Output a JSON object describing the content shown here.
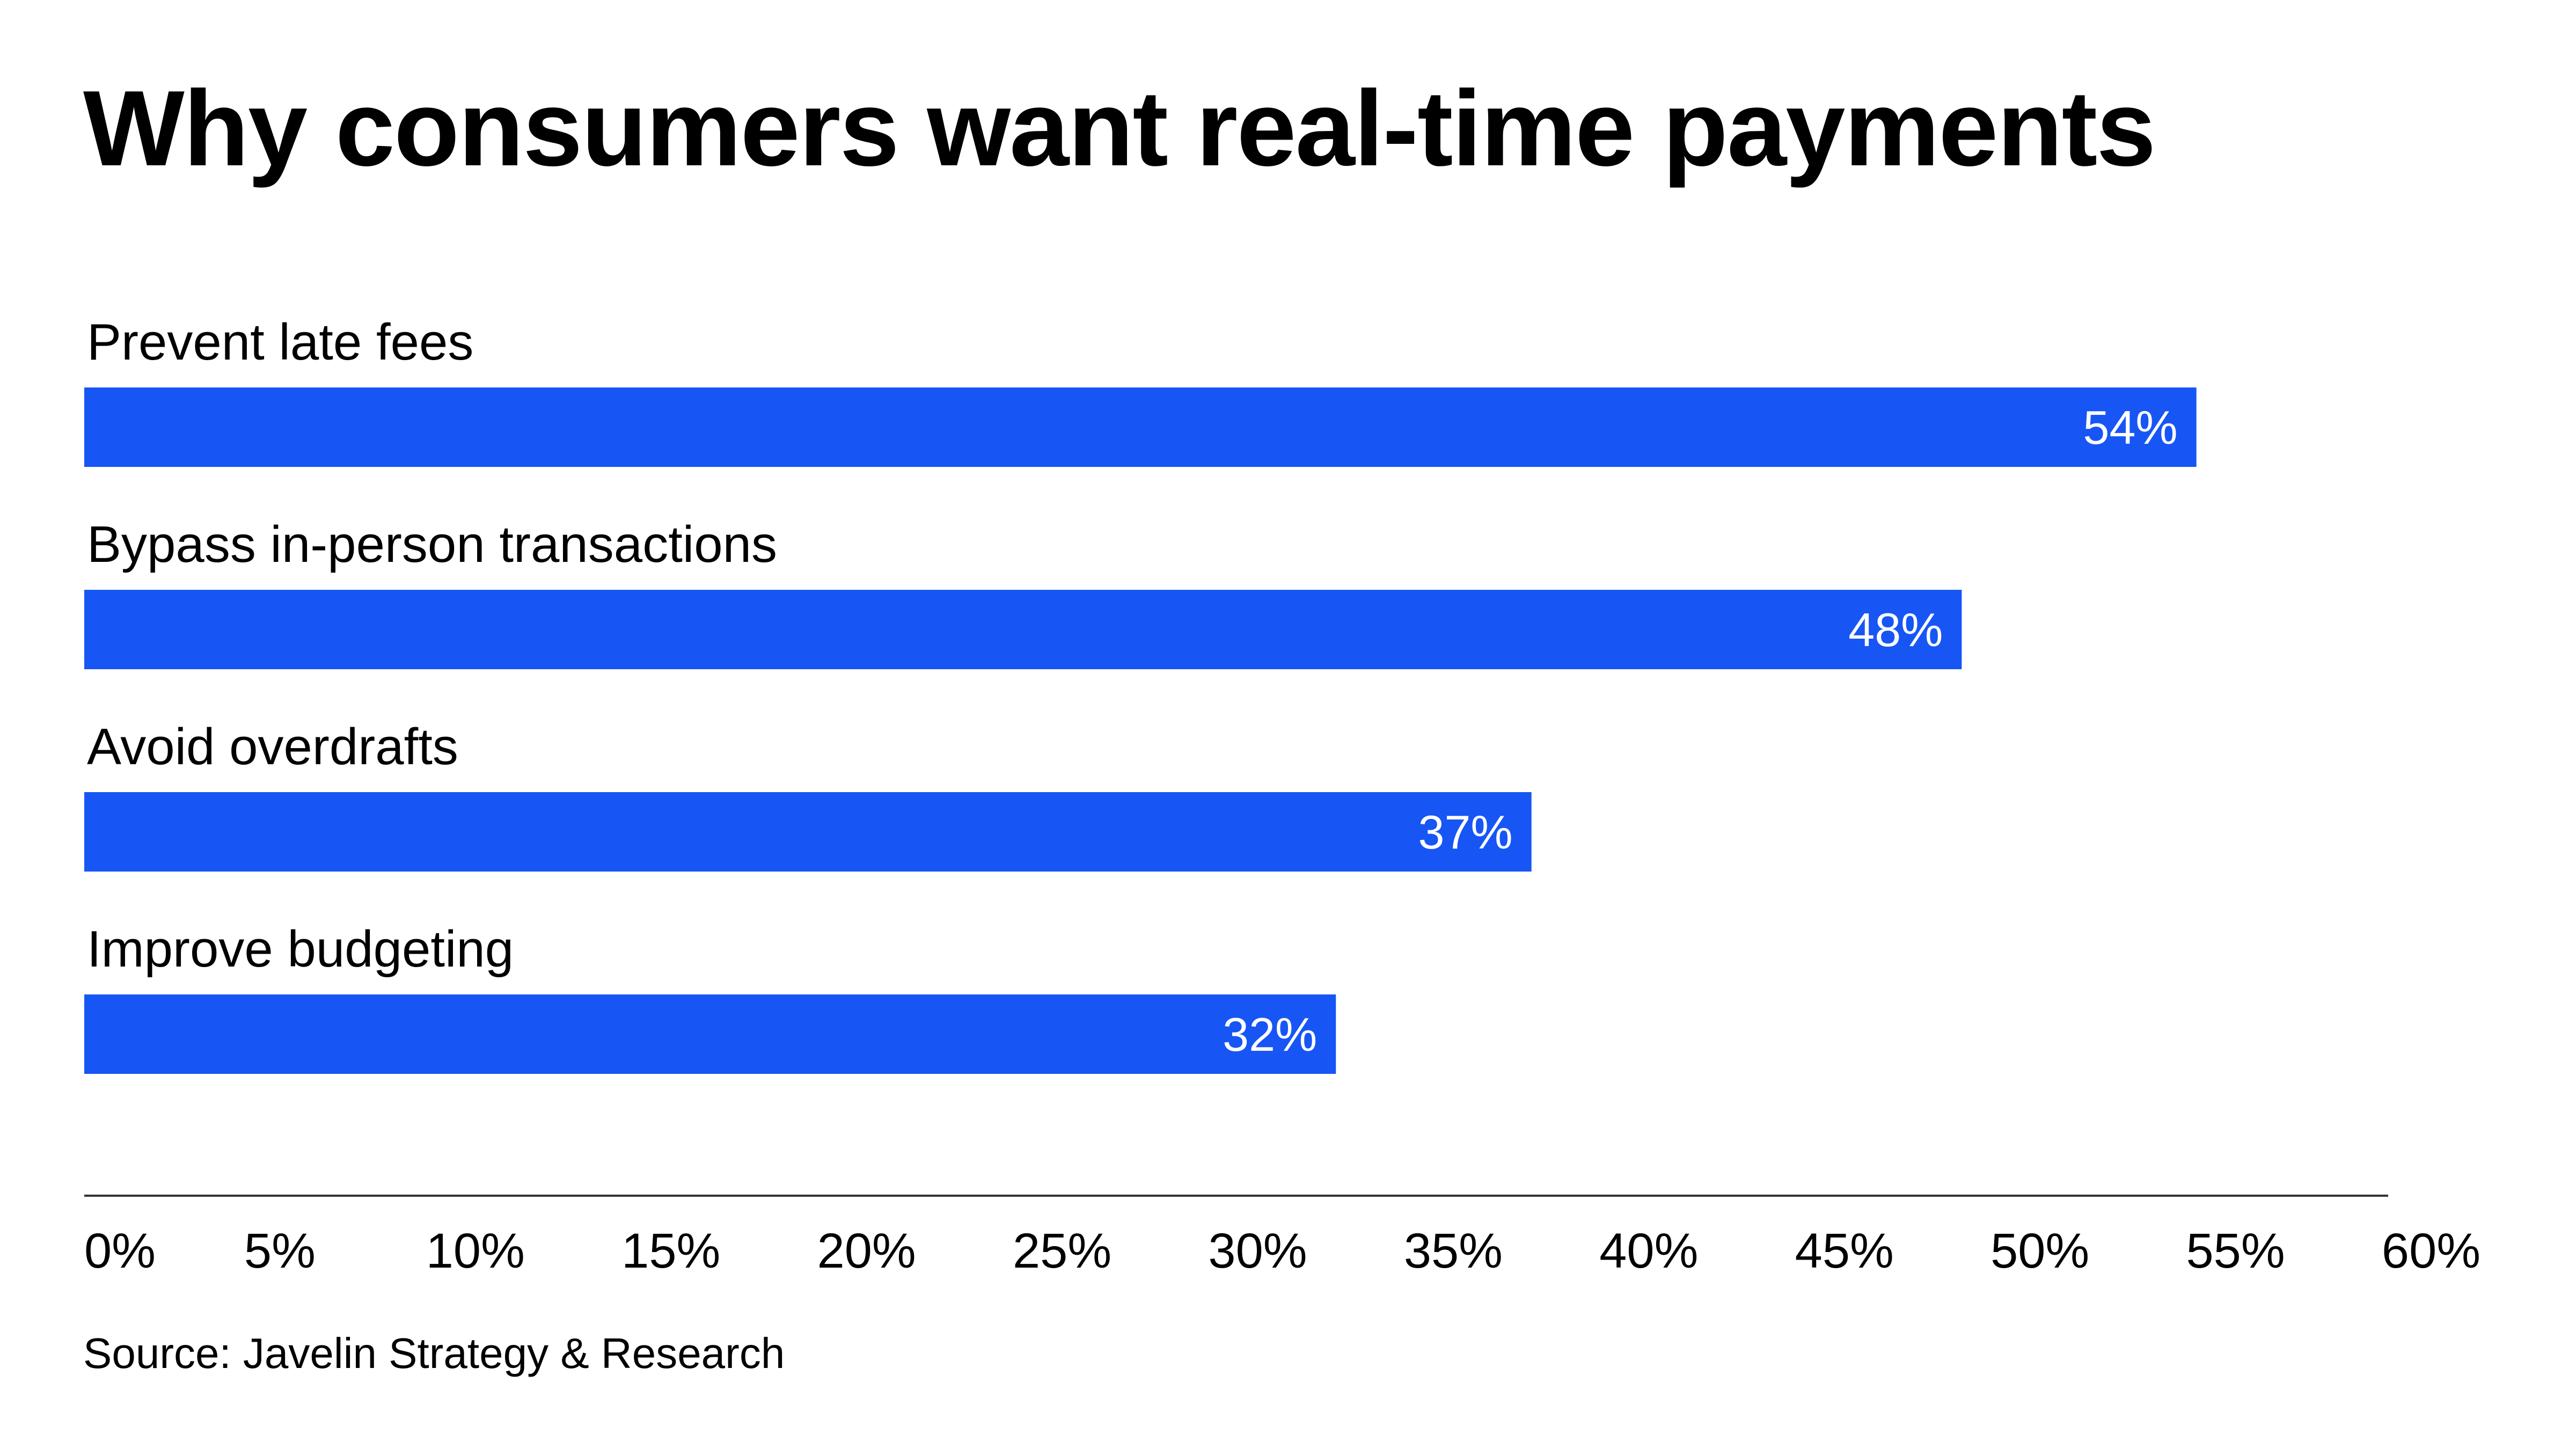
{
  "chart_data": {
    "type": "bar",
    "orientation": "horizontal",
    "title": "Why consumers want real-time payments",
    "categories": [
      "Prevent late fees",
      "Bypass in-person transactions",
      "Avoid overdrafts",
      "Improve budgeting"
    ],
    "values": [
      54,
      48,
      37,
      32
    ],
    "value_labels": [
      "54%",
      "48%",
      "37%",
      "32%"
    ],
    "xlim": [
      0,
      60
    ],
    "xticks": [
      "0%",
      "5%",
      "10%",
      "15%",
      "20%",
      "25%",
      "30%",
      "35%",
      "40%",
      "45%",
      "50%",
      "55%",
      "60%"
    ],
    "xlabel": "",
    "ylabel": "",
    "grid": false,
    "legend": "none",
    "bar_color": "#1756F5",
    "source": "Source: Javelin Strategy & Research"
  }
}
